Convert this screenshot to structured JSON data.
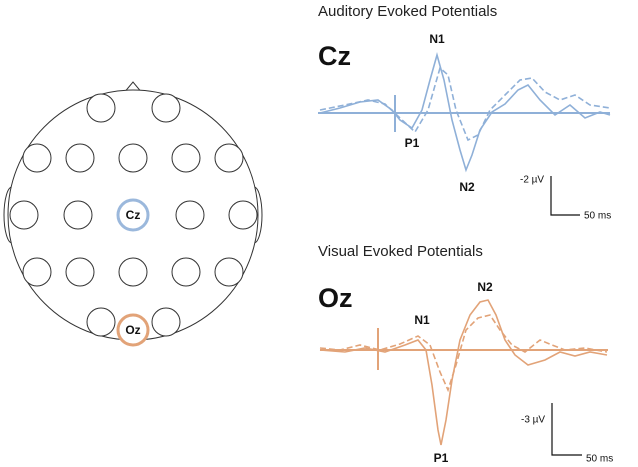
{
  "head": {
    "electrodes": {
      "cz": "Cz",
      "oz": "Oz"
    }
  },
  "auditory": {
    "title": "Auditory Evoked Potentials",
    "site": "Cz",
    "peaks": {
      "n1": "N1",
      "p1": "P1",
      "n2": "N2"
    },
    "scale": {
      "amplitude": "-2 µV",
      "time": "50 ms"
    }
  },
  "visual": {
    "title": "Visual Evoked Potentials",
    "site": "Oz",
    "peaks": {
      "n1": "N1",
      "n2": "N2",
      "p1": "P1"
    },
    "scale": {
      "amplitude": "-3 µV",
      "time": "50 ms"
    }
  }
}
